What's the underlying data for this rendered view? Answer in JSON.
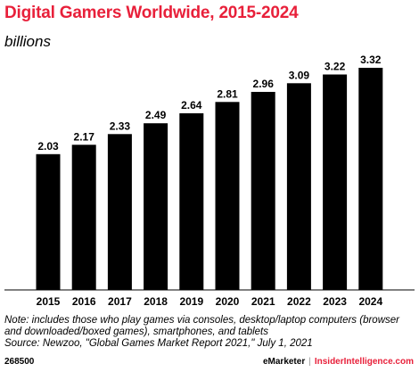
{
  "chart_data": {
    "type": "bar",
    "title": "Digital Gamers Worldwide, 2015-2024",
    "subtitle": "billions",
    "categories": [
      "2015",
      "2016",
      "2017",
      "2018",
      "2019",
      "2020",
      "2021",
      "2022",
      "2023",
      "2024"
    ],
    "values": [
      2.03,
      2.17,
      2.33,
      2.49,
      2.64,
      2.81,
      2.96,
      3.09,
      3.22,
      3.32
    ],
    "value_labels": [
      "2.03",
      "2.17",
      "2.33",
      "2.49",
      "2.64",
      "2.81",
      "2.96",
      "3.09",
      "3.22",
      "3.32"
    ],
    "ylim": [
      0,
      4.0
    ],
    "bar_color": "#000000",
    "grid": false,
    "xlabel": "",
    "ylabel": ""
  },
  "notes": {
    "note": "Note: includes those who play games via consoles, desktop/laptop computers (browser and downloaded/boxed games), smartphones, and tablets",
    "source": "Source: Newzoo, \"Global Games Market Report 2021,\" July 1, 2021"
  },
  "footer": {
    "chart_id": "268500",
    "brand": "eMarketer",
    "separator": "|",
    "brand2": "InsiderIntelligence.com"
  },
  "colors": {
    "title": "#e8203a",
    "accent": "#e8203a"
  }
}
